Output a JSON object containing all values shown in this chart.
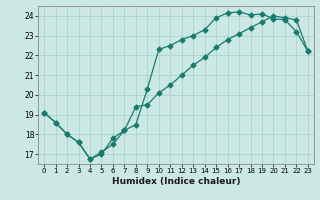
{
  "xlabel": "Humidex (Indice chaleur)",
  "bg_color": "#cce8e4",
  "grid_color": "#aad4ce",
  "line_color": "#1a7a6e",
  "xlim": [
    -0.5,
    23.5
  ],
  "ylim": [
    16.5,
    24.5
  ],
  "xticks": [
    0,
    1,
    2,
    3,
    4,
    5,
    6,
    7,
    8,
    9,
    10,
    11,
    12,
    13,
    14,
    15,
    16,
    17,
    18,
    19,
    20,
    21,
    22,
    23
  ],
  "yticks": [
    17,
    18,
    19,
    20,
    21,
    22,
    23,
    24
  ],
  "line1_x": [
    0,
    1,
    2,
    3,
    4,
    5,
    6,
    7,
    8,
    9,
    10,
    11,
    12,
    13,
    14,
    15,
    16,
    17,
    18,
    19,
    20,
    21,
    22,
    23
  ],
  "line1_y": [
    19.1,
    18.6,
    18.0,
    17.6,
    16.75,
    17.0,
    17.8,
    18.2,
    18.5,
    20.3,
    22.3,
    22.5,
    22.8,
    23.0,
    23.3,
    23.9,
    24.15,
    24.2,
    24.05,
    24.1,
    23.85,
    23.8,
    23.2,
    22.2
  ],
  "line2_x": [
    0,
    1,
    2,
    3,
    4,
    5,
    6,
    7,
    8,
    9,
    10,
    11,
    12,
    13,
    14,
    15,
    16,
    17,
    18,
    19,
    20,
    21,
    22,
    23
  ],
  "line2_y": [
    19.1,
    18.6,
    18.0,
    17.6,
    16.75,
    17.1,
    17.5,
    18.2,
    19.4,
    19.5,
    20.1,
    20.5,
    21.0,
    21.5,
    21.9,
    22.4,
    22.8,
    23.1,
    23.4,
    23.7,
    24.0,
    23.9,
    23.8,
    22.2
  ],
  "marker": "D",
  "markersize": 2.5,
  "linewidth": 0.9
}
